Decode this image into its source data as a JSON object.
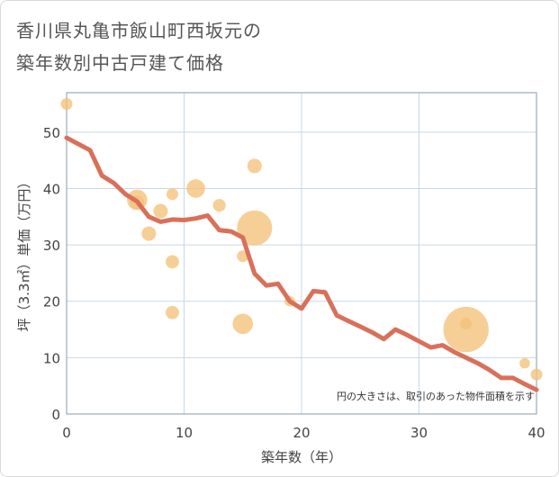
{
  "title_lines": [
    "香川県丸亀市飯山町西坂元の",
    "築年数別中古戸建て価格"
  ],
  "chart_data": {
    "type": "scatter+line",
    "xlabel": "築年数（年）",
    "ylabel": "坪（3.3㎡）単価（万円）",
    "xlim": [
      0,
      40
    ],
    "ylim": [
      0,
      57
    ],
    "xticks": [
      0,
      10,
      20,
      30,
      40
    ],
    "yticks": [
      0,
      10,
      20,
      30,
      40,
      50
    ],
    "grid": true,
    "note": "円の大きさは、取引のあった物件面積を示す",
    "colors": {
      "bubble": "#f4c27a",
      "line": "#d9705a",
      "grid": "#c8d8e8",
      "plot_border": "#8a9aab"
    },
    "bubbles": [
      {
        "x": 0,
        "y": 55,
        "size": 1
      },
      {
        "x": 6,
        "y": 38,
        "size": 3
      },
      {
        "x": 6,
        "y": 37.5,
        "size": 1.5
      },
      {
        "x": 7,
        "y": 32,
        "size": 1.5
      },
      {
        "x": 8,
        "y": 36,
        "size": 1.5
      },
      {
        "x": 9,
        "y": 39,
        "size": 1
      },
      {
        "x": 9,
        "y": 27,
        "size": 1.3
      },
      {
        "x": 9,
        "y": 18,
        "size": 1.3
      },
      {
        "x": 11,
        "y": 40,
        "size": 2.5
      },
      {
        "x": 13,
        "y": 37,
        "size": 1.2
      },
      {
        "x": 15,
        "y": 28,
        "size": 1
      },
      {
        "x": 15,
        "y": 16,
        "size": 3
      },
      {
        "x": 16,
        "y": 44,
        "size": 1.5
      },
      {
        "x": 16,
        "y": 33,
        "size": 9
      },
      {
        "x": 19,
        "y": 20,
        "size": 0.8
      },
      {
        "x": 34,
        "y": 15,
        "size": 15
      },
      {
        "x": 34,
        "y": 16,
        "size": 1
      },
      {
        "x": 39,
        "y": 9,
        "size": 0.8
      },
      {
        "x": 40,
        "y": 7,
        "size": 1
      }
    ],
    "trend": {
      "x": [
        0,
        1,
        2,
        3,
        4,
        5,
        6,
        7,
        8,
        9,
        10,
        11,
        12,
        13,
        14,
        15,
        16,
        17,
        18,
        19,
        20,
        21,
        22,
        23,
        24,
        25,
        26,
        27,
        28,
        29,
        30,
        31,
        32,
        33,
        34,
        35,
        36,
        37,
        38,
        39,
        40
      ],
      "y": [
        49,
        47.9,
        46.8,
        42.3,
        41,
        39,
        37.7,
        35,
        34.1,
        34.5,
        34.4,
        34.7,
        35.2,
        32.6,
        32.4,
        31.3,
        24.9,
        22.8,
        23.1,
        20,
        18.7,
        21.8,
        21.6,
        17.5,
        16.5,
        15.5,
        14.5,
        13.3,
        15,
        14,
        12.9,
        11.8,
        12.2,
        11,
        10,
        9,
        7.8,
        6.4,
        6.4,
        5.3,
        4.3
      ]
    }
  }
}
